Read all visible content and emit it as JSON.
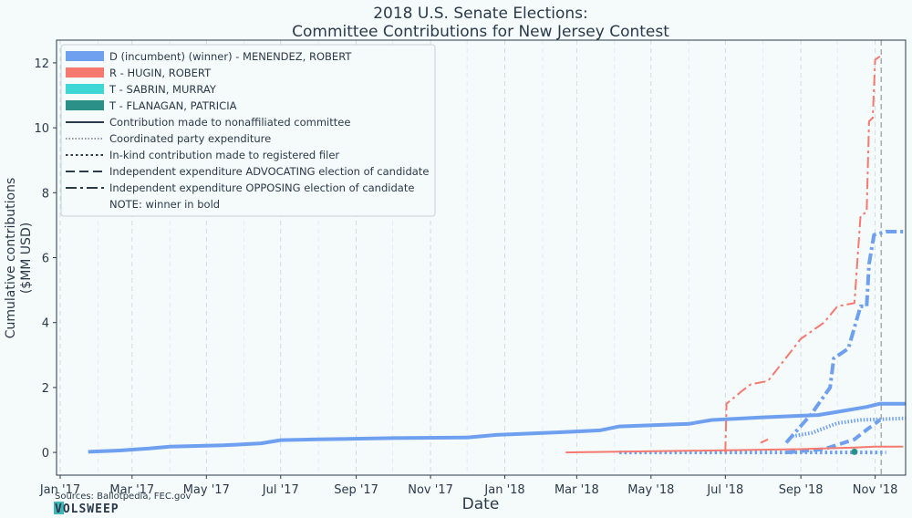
{
  "chart_data": {
    "type": "line",
    "title_line1": "2018 U.S. Senate Elections:",
    "title_line2": "Committee Contributions for New Jersey Contest",
    "xlabel": "Date",
    "ylabel_line1": "Cumulative contributions",
    "ylabel_line2": "($MM USD)",
    "x_ticks": [
      "Jan '17",
      "Mar '17",
      "May '17",
      "Jul '17",
      "Sep '17",
      "Nov '17",
      "Jan '18",
      "Mar '18",
      "May '18",
      "Jul '18",
      "Sep '18",
      "Nov '18"
    ],
    "x_tick_dates": [
      "2017-01-01",
      "2017-03-01",
      "2017-05-01",
      "2017-07-01",
      "2017-09-01",
      "2017-11-01",
      "2018-01-01",
      "2018-03-01",
      "2018-05-01",
      "2018-07-01",
      "2018-09-01",
      "2018-11-01"
    ],
    "xlim": [
      "2016-12-29",
      "2018-11-26"
    ],
    "y_ticks": [
      "0",
      "2",
      "4",
      "6",
      "8",
      "10",
      "12"
    ],
    "ylim": [
      -0.7,
      12.7
    ],
    "election_date": "2018-11-06",
    "grid": "vertical dashed",
    "legend_position": "top-left",
    "legend": {
      "candidates": [
        {
          "label": "D (incumbent) (winner) - MENENDEZ, ROBERT",
          "color": "#6fa0f0"
        },
        {
          "label": "R - HUGIN, ROBERT",
          "color": "#f5796f"
        },
        {
          "label": "T - SABRIN, MURRAY",
          "color": "#3fd6d6"
        },
        {
          "label": "T - FLANAGAN, PATRICIA",
          "color": "#2a9088"
        }
      ],
      "line_types": [
        {
          "label": "Contribution made to nonaffiliated committee",
          "dash": "solid"
        },
        {
          "label": "Coordinated party expenditure",
          "dash": "fine-dotted"
        },
        {
          "label": "In-kind contribution made to registered filer",
          "dash": "dotted"
        },
        {
          "label": "Independent expenditure ADVOCATING election of candidate",
          "dash": "dashed"
        },
        {
          "label": "Independent expenditure OPPOSING election of candidate",
          "dash": "dashdot"
        }
      ],
      "note": "NOTE: winner in bold"
    },
    "series": [
      {
        "candidate": "MENENDEZ",
        "type": "nonaffiliated",
        "color": "#6fa0f0",
        "bold": true,
        "dash": "solid",
        "points": [
          [
            "2017-01-24",
            0.02
          ],
          [
            "2017-02-20",
            0.06
          ],
          [
            "2017-03-15",
            0.12
          ],
          [
            "2017-04-01",
            0.18
          ],
          [
            "2017-05-15",
            0.22
          ],
          [
            "2017-06-15",
            0.28
          ],
          [
            "2017-07-01",
            0.38
          ],
          [
            "2017-08-01",
            0.4
          ],
          [
            "2017-10-01",
            0.44
          ],
          [
            "2017-12-01",
            0.46
          ],
          [
            "2017-12-25",
            0.54
          ],
          [
            "2018-02-15",
            0.62
          ],
          [
            "2018-03-20",
            0.68
          ],
          [
            "2018-04-05",
            0.8
          ],
          [
            "2018-06-01",
            0.88
          ],
          [
            "2018-06-20",
            1.0
          ],
          [
            "2018-08-01",
            1.08
          ],
          [
            "2018-09-15",
            1.15
          ],
          [
            "2018-10-01",
            1.25
          ],
          [
            "2018-10-25",
            1.4
          ],
          [
            "2018-11-05",
            1.5
          ],
          [
            "2018-11-26",
            1.5
          ]
        ]
      },
      {
        "candidate": "MENENDEZ",
        "type": "coordinated",
        "color": "#6fa0f0",
        "bold": true,
        "dash": "fine-dotted",
        "points": [
          [
            "2018-08-25",
            0.5
          ],
          [
            "2018-09-10",
            0.6
          ],
          [
            "2018-10-01",
            0.9
          ],
          [
            "2018-10-20",
            1.0
          ],
          [
            "2018-11-26",
            1.05
          ]
        ]
      },
      {
        "candidate": "MENENDEZ",
        "type": "inkind",
        "color": "#6fa0f0",
        "bold": true,
        "dash": "dotted",
        "points": [
          [
            "2018-04-05",
            0.0
          ],
          [
            "2018-10-10",
            0.0
          ],
          [
            "2018-11-05",
            0.0
          ],
          [
            "2018-11-10",
            0.0
          ]
        ]
      },
      {
        "candidate": "MENENDEZ",
        "type": "advocating",
        "color": "#6fa0f0",
        "bold": true,
        "dash": "dashed",
        "points": [
          [
            "2018-08-20",
            0.0
          ],
          [
            "2018-09-20",
            0.1
          ],
          [
            "2018-10-15",
            0.4
          ],
          [
            "2018-10-25",
            0.7
          ],
          [
            "2018-11-05",
            1.0
          ]
        ]
      },
      {
        "candidate": "MENENDEZ",
        "type": "opposing",
        "color": "#6fa0f0",
        "bold": true,
        "dash": "dashdot",
        "points": [
          [
            "2018-08-20",
            0.3
          ],
          [
            "2018-09-10",
            1.2
          ],
          [
            "2018-09-25",
            2.0
          ],
          [
            "2018-09-28",
            2.9
          ],
          [
            "2018-10-10",
            3.2
          ],
          [
            "2018-10-20",
            4.5
          ],
          [
            "2018-10-25",
            4.5
          ],
          [
            "2018-10-27",
            5.8
          ],
          [
            "2018-10-31",
            6.7
          ],
          [
            "2018-11-10",
            6.8
          ],
          [
            "2018-11-24",
            6.8
          ]
        ]
      },
      {
        "candidate": "HUGIN",
        "type": "nonaffiliated",
        "color": "#f5796f",
        "bold": false,
        "dash": "solid",
        "points": [
          [
            "2018-02-20",
            0.0
          ],
          [
            "2018-06-01",
            0.05
          ],
          [
            "2018-09-01",
            0.1
          ],
          [
            "2018-10-15",
            0.15
          ],
          [
            "2018-11-01",
            0.18
          ],
          [
            "2018-11-24",
            0.18
          ]
        ]
      },
      {
        "candidate": "HUGIN",
        "type": "advocating",
        "color": "#f5796f",
        "bold": false,
        "dash": "dashed",
        "points": [
          [
            "2018-07-30",
            0.3
          ],
          [
            "2018-08-05",
            0.4
          ]
        ]
      },
      {
        "candidate": "HUGIN",
        "type": "opposing",
        "color": "#f5796f",
        "bold": false,
        "dash": "dashdot",
        "points": [
          [
            "2018-07-01",
            0.0
          ],
          [
            "2018-07-02",
            1.5
          ],
          [
            "2018-07-15",
            1.9
          ],
          [
            "2018-07-22",
            2.1
          ],
          [
            "2018-08-05",
            2.2
          ],
          [
            "2018-09-01",
            3.5
          ],
          [
            "2018-09-20",
            4.0
          ],
          [
            "2018-10-01",
            4.5
          ],
          [
            "2018-10-15",
            4.6
          ],
          [
            "2018-10-20",
            7.3
          ],
          [
            "2018-10-25",
            7.4
          ],
          [
            "2018-10-27",
            10.2
          ],
          [
            "2018-10-30",
            10.3
          ],
          [
            "2018-11-01",
            12.1
          ],
          [
            "2018-11-05",
            12.2
          ]
        ]
      },
      {
        "candidate": "FLANAGAN",
        "type": "nonaffiliated",
        "color": "#2a9088",
        "bold": false,
        "dash": "point",
        "points": [
          [
            "2018-10-15",
            0.02
          ]
        ]
      }
    ]
  },
  "footer": {
    "source": "Sources: Ballotpedia, FEC.gov",
    "logo": "VOLSWEEP"
  }
}
